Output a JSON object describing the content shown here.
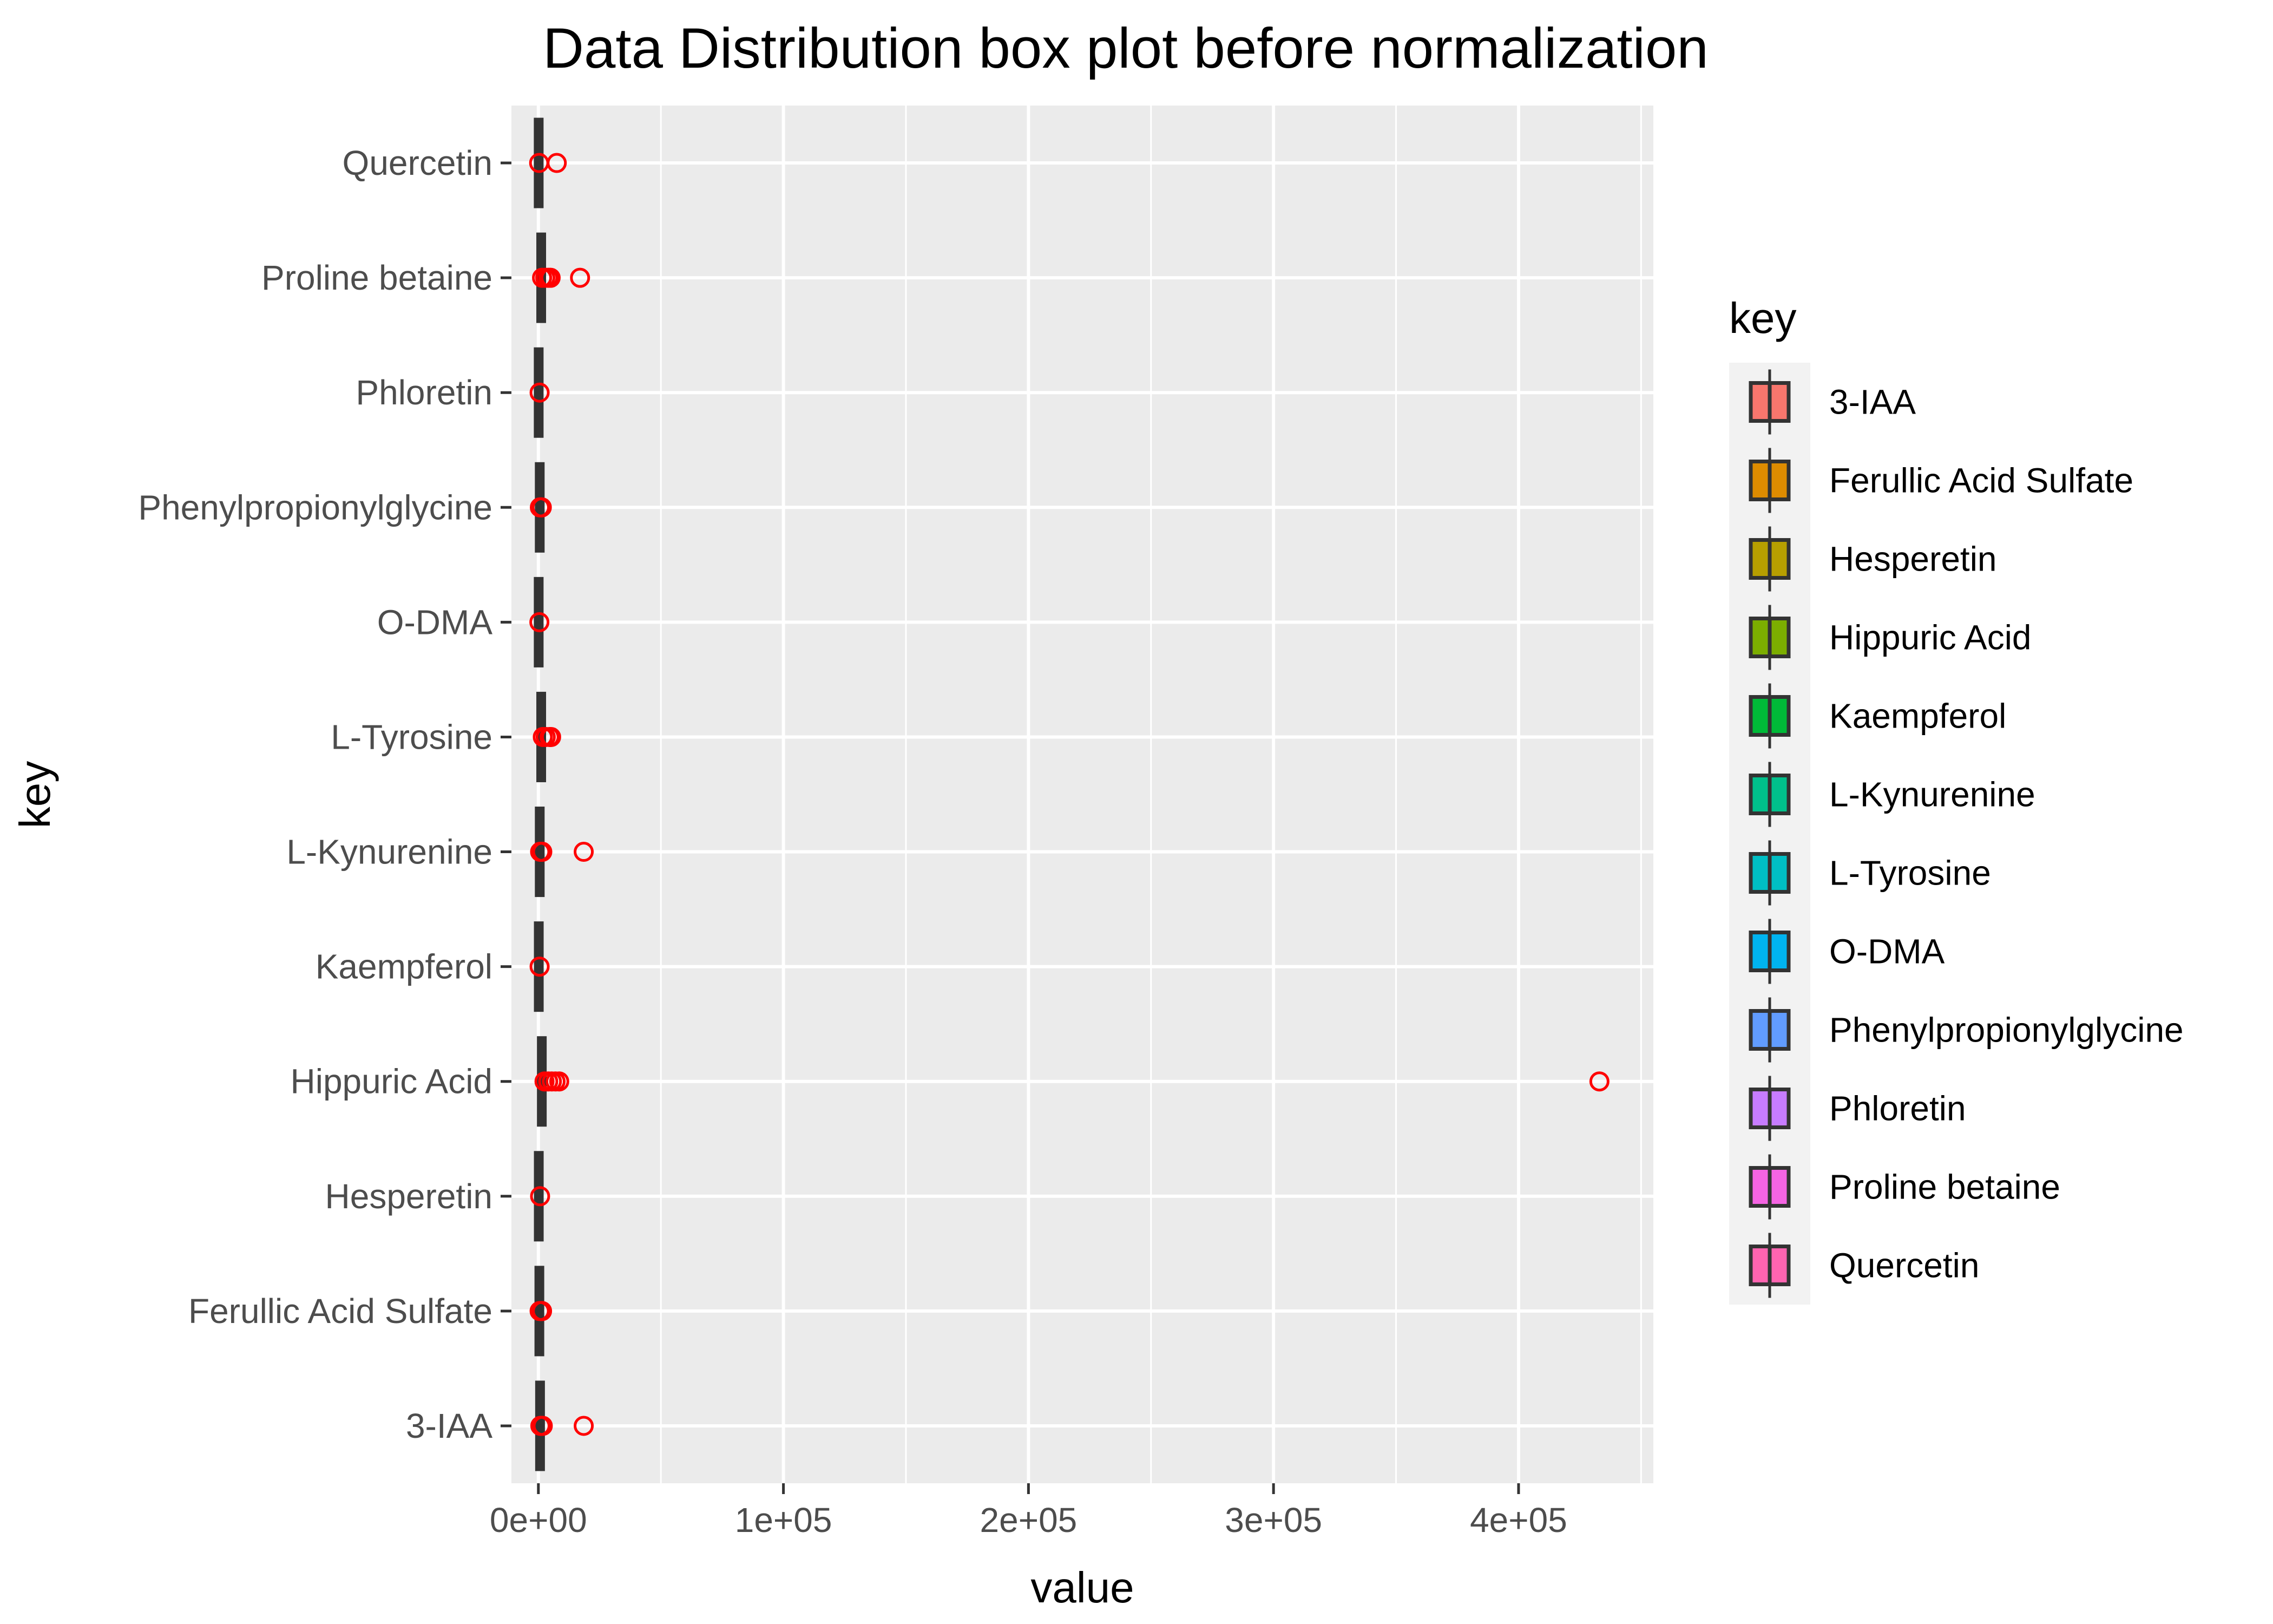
{
  "chart_data": {
    "type": "boxplot",
    "orientation": "horizontal",
    "title": "Data Distribution box plot before normalization",
    "xlabel": "value",
    "ylabel": "key",
    "xlim": [
      -11000,
      455000
    ],
    "x_ticks": [
      {
        "value": 0,
        "label": "0e+00"
      },
      {
        "value": 100000,
        "label": "1e+05"
      },
      {
        "value": 200000,
        "label": "2e+05"
      },
      {
        "value": 300000,
        "label": "3e+05"
      },
      {
        "value": 400000,
        "label": "4e+05"
      }
    ],
    "categories": [
      "3-IAA",
      "Ferullic Acid Sulfate",
      "Hesperetin",
      "Hippuric Acid",
      "Kaempferol",
      "L-Kynurenine",
      "L-Tyrosine",
      "O-DMA",
      "Phenylpropionylglycine",
      "Phloretin",
      "Proline betaine",
      "Quercetin"
    ],
    "series": [
      {
        "name": "3-IAA",
        "color": "#F8766D",
        "box": [
          150,
          350,
          600,
          1000,
          1600
        ],
        "outliers": [
          800,
          1200,
          1800,
          18500
        ]
      },
      {
        "name": "Ferullic Acid Sulfate",
        "color": "#DE8C00",
        "box": [
          80,
          200,
          380,
          600,
          1000
        ],
        "outliers": [
          500,
          1100,
          1500
        ]
      },
      {
        "name": "Hesperetin",
        "color": "#B79F00",
        "box": [
          20,
          80,
          150,
          250,
          450
        ],
        "outliers": [
          700
        ]
      },
      {
        "name": "Hippuric Acid",
        "color": "#7CAE00",
        "box": [
          300,
          800,
          1300,
          2000,
          3000
        ],
        "outliers": [
          2500,
          4000,
          5500,
          7000,
          8500,
          433000
        ]
      },
      {
        "name": "Kaempferol",
        "color": "#00BA38",
        "box": [
          20,
          80,
          150,
          250,
          450
        ],
        "outliers": [
          500
        ]
      },
      {
        "name": "L-Kynurenine",
        "color": "#00C08B",
        "box": [
          100,
          300,
          500,
          800,
          1300
        ],
        "outliers": [
          700,
          1200,
          1600,
          18500
        ]
      },
      {
        "name": "L-Tyrosine",
        "color": "#00BFC4",
        "box": [
          300,
          700,
          1100,
          1600,
          2300
        ],
        "outliers": [
          1800,
          3000,
          4500,
          5200
        ]
      },
      {
        "name": "O-DMA",
        "color": "#00B4F0",
        "box": [
          10,
          50,
          100,
          200,
          350
        ],
        "outliers": [
          400
        ]
      },
      {
        "name": "Phenylpropionylglycine",
        "color": "#619CFF",
        "box": [
          100,
          300,
          500,
          800,
          1200
        ],
        "outliers": [
          600,
          1000,
          1400
        ]
      },
      {
        "name": "Phloretin",
        "color": "#C77CFF",
        "box": [
          10,
          50,
          100,
          200,
          350
        ],
        "outliers": [
          500
        ]
      },
      {
        "name": "Proline betaine",
        "color": "#F564E3",
        "box": [
          300,
          700,
          1100,
          1600,
          2400
        ],
        "outliers": [
          1500,
          2800,
          4000,
          5000,
          17000
        ]
      },
      {
        "name": "Quercetin",
        "color": "#FF64B0",
        "box": [
          10,
          50,
          100,
          200,
          350
        ],
        "outliers": [
          300,
          7500
        ]
      }
    ],
    "outlier_color": "#FF0000",
    "grid": true,
    "legend": {
      "title": "key",
      "position": "right",
      "entries": [
        "3-IAA",
        "Ferullic Acid Sulfate",
        "Hesperetin",
        "Hippuric Acid",
        "Kaempferol",
        "L-Kynurenine",
        "L-Tyrosine",
        "O-DMA",
        "Phenylpropionylglycine",
        "Phloretin",
        "Proline betaine",
        "Quercetin"
      ]
    },
    "panel_color": "#EBEBEB",
    "grid_color": "#FFFFFF"
  }
}
